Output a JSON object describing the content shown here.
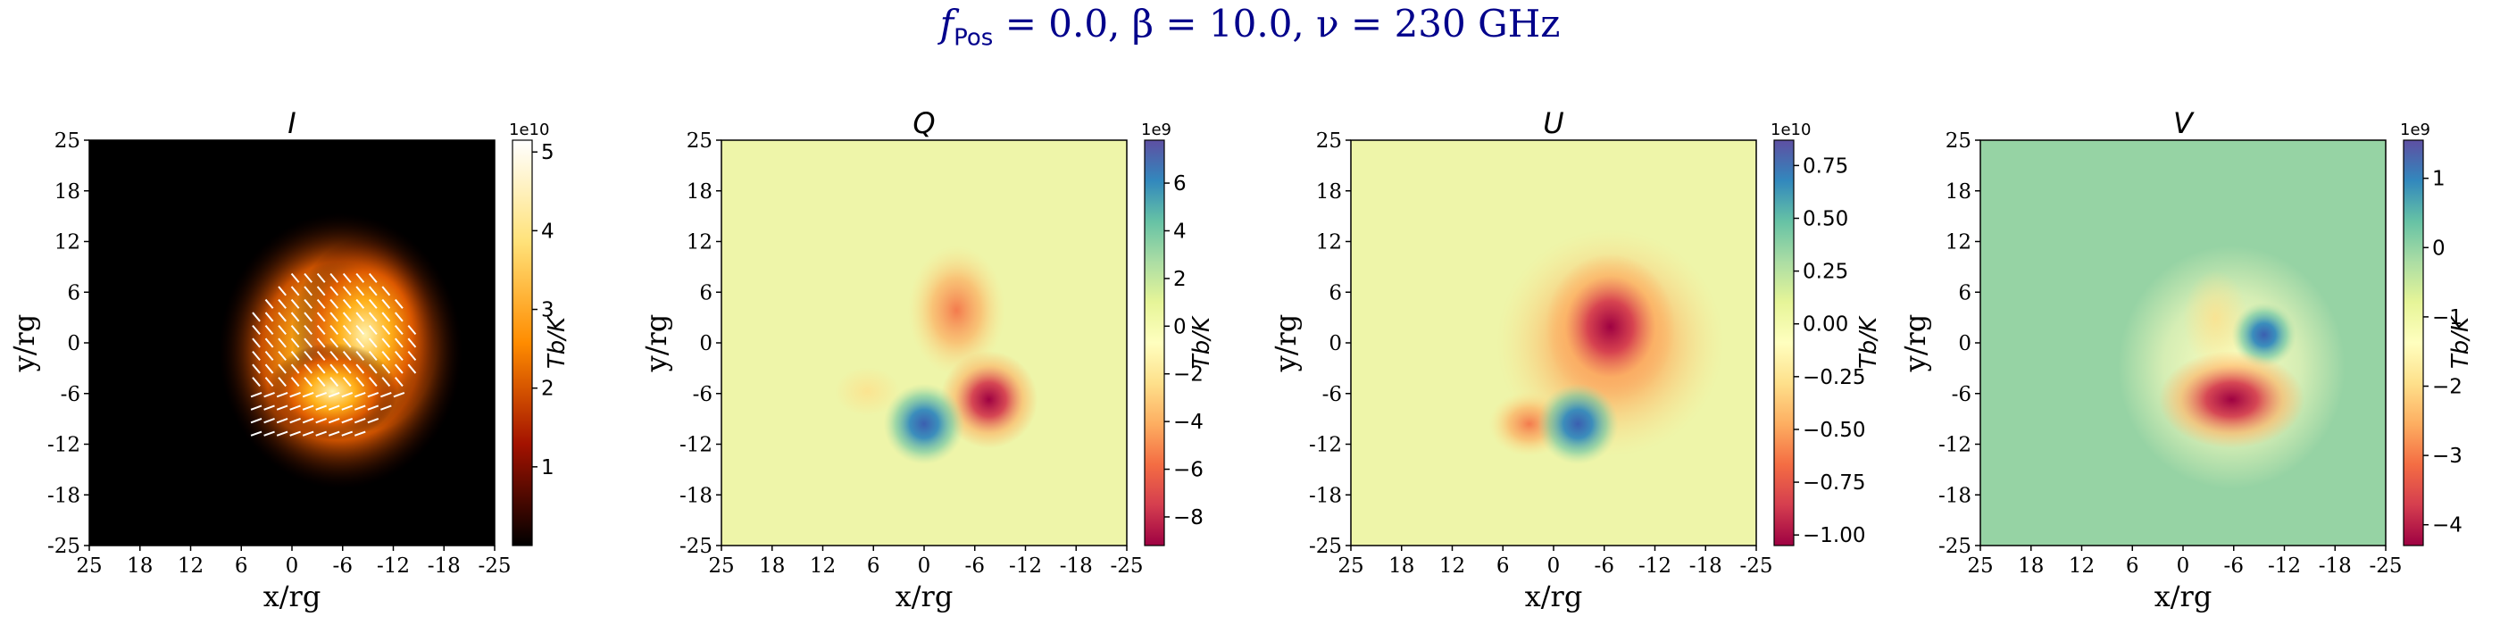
{
  "figure": {
    "title_f": "f",
    "title_sub": "Pos",
    "title_rest": " = 0.0, β = 10.0, ν = 230 GHz"
  },
  "chart_data": [
    {
      "type": "heatmap",
      "title": "I",
      "xlabel": "x/rg",
      "ylabel": "y/rg",
      "xticks": [
        "25",
        "18",
        "12",
        "6",
        "0",
        "-6",
        "-12",
        "-18",
        "-25"
      ],
      "yticks": [
        "25",
        "18",
        "12",
        "6",
        "0",
        "-6",
        "-12",
        "-18",
        "-25"
      ],
      "xlim": [
        25,
        -25
      ],
      "ylim": [
        -25,
        25
      ],
      "colormap": "afmhot",
      "colorbar": {
        "label": "Tb/K",
        "exponent": "1e10",
        "ticks": [
          "1",
          "2",
          "3",
          "4",
          "5"
        ],
        "tick_values": [
          1,
          2,
          3,
          4,
          5
        ],
        "range": [
          0,
          5.15
        ]
      },
      "features": [
        {
          "kind": "peak",
          "x": -9,
          "y": 0,
          "value": 5.1
        },
        {
          "kind": "lobe",
          "x": -6,
          "y": -6,
          "value": 4.0
        }
      ],
      "polarization_ticks": true
    },
    {
      "type": "heatmap",
      "title": "Q",
      "xlabel": "x/rg",
      "ylabel": "y/rg",
      "xticks": [
        "25",
        "18",
        "12",
        "6",
        "0",
        "-6",
        "-12",
        "-18",
        "-25"
      ],
      "yticks": [
        "25",
        "18",
        "12",
        "6",
        "0",
        "-6",
        "-12",
        "-18",
        "-25"
      ],
      "xlim": [
        25,
        -25
      ],
      "ylim": [
        -25,
        25
      ],
      "colormap": "Spectral",
      "colorbar": {
        "label": "Tb/K",
        "exponent": "1e9",
        "ticks": [
          "6",
          "4",
          "2",
          "0",
          "−2",
          "−4",
          "−6",
          "−8"
        ],
        "tick_values": [
          6,
          4,
          2,
          0,
          -2,
          -4,
          -6,
          -8
        ],
        "range": [
          -9.2,
          7.8
        ]
      },
      "features": [
        {
          "kind": "min",
          "x": -8,
          "y": -7,
          "value": -9
        },
        {
          "kind": "max",
          "x": 0,
          "y": -10,
          "value": 7.5
        },
        {
          "kind": "negative-lobe",
          "x": -4,
          "y": 4,
          "value": -3
        }
      ]
    },
    {
      "type": "heatmap",
      "title": "U",
      "xlabel": "x/rg",
      "ylabel": "y/rg",
      "xticks": [
        "25",
        "18",
        "12",
        "6",
        "0",
        "-6",
        "-12",
        "-18",
        "-25"
      ],
      "yticks": [
        "25",
        "18",
        "12",
        "6",
        "0",
        "-6",
        "-12",
        "-18",
        "-25"
      ],
      "xlim": [
        25,
        -25
      ],
      "ylim": [
        -25,
        25
      ],
      "colormap": "Spectral",
      "colorbar": {
        "label": "Tb/K",
        "exponent": "1e10",
        "ticks": [
          "0.75",
          "0.50",
          "0.25",
          "0.00",
          "−0.25",
          "−0.50",
          "−0.75",
          "−1.00"
        ],
        "tick_values": [
          0.75,
          0.5,
          0.25,
          0.0,
          -0.25,
          -0.5,
          -0.75,
          -1.0
        ],
        "range": [
          -1.05,
          0.87
        ]
      },
      "features": [
        {
          "kind": "min",
          "x": -7,
          "y": 2,
          "value": -1.05
        },
        {
          "kind": "max",
          "x": -3,
          "y": -10,
          "value": 0.85
        },
        {
          "kind": "negative-lobe",
          "x": 3,
          "y": -10,
          "value": -0.4
        }
      ]
    },
    {
      "type": "heatmap",
      "title": "V",
      "xlabel": "x/rg",
      "ylabel": "y/rg",
      "xticks": [
        "25",
        "18",
        "12",
        "6",
        "0",
        "-6",
        "-12",
        "-18",
        "-25"
      ],
      "yticks": [
        "25",
        "18",
        "12",
        "6",
        "0",
        "-6",
        "-12",
        "-18",
        "-25"
      ],
      "xlim": [
        25,
        -25
      ],
      "ylim": [
        -25,
        25
      ],
      "colormap": "Spectral",
      "colorbar": {
        "label": "Tb/K",
        "exponent": "1e9",
        "ticks": [
          "1",
          "0",
          "−1",
          "−2",
          "−3",
          "−4"
        ],
        "tick_values": [
          1,
          0,
          -1,
          -2,
          -3,
          -4
        ],
        "range": [
          -4.3,
          1.55
        ]
      },
      "features": [
        {
          "kind": "min",
          "x": -6,
          "y": -7,
          "value": -4.3
        },
        {
          "kind": "max",
          "x": -10,
          "y": 1,
          "value": 1.5
        }
      ]
    }
  ]
}
